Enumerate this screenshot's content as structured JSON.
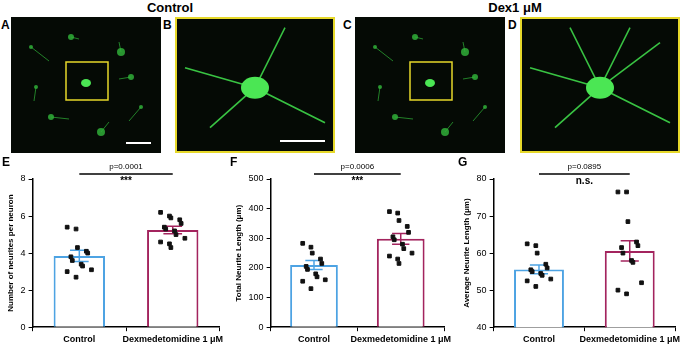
{
  "images": {
    "titles": [
      "Control",
      "Dex1 μM"
    ],
    "panels": [
      "A",
      "B",
      "C",
      "D"
    ]
  },
  "chart_data": [
    {
      "panel": "E",
      "type": "bar",
      "y_label": "Number of neurites per neuron",
      "categories": [
        "Control",
        "Dexmedetomidine 1 μM"
      ],
      "values": [
        3.85,
        5.25
      ],
      "errors": [
        0.3,
        0.2
      ],
      "colors": [
        "#4da3e3",
        "#a3245e"
      ],
      "points": [
        [
          5.4,
          5.3,
          4.3,
          4.1,
          4.0,
          3.8,
          3.6,
          3.4,
          3.3,
          3.1,
          3.0,
          2.7
        ],
        [
          6.2,
          6.0,
          5.9,
          5.8,
          5.6,
          5.4,
          5.3,
          5.2,
          5.0,
          4.8,
          4.6,
          4.5,
          4.3
        ]
      ],
      "marker": "square",
      "annotation": {
        "text": "p=0.0001",
        "significance": "***"
      },
      "ylim": [
        0,
        8
      ],
      "yticks": [
        0,
        2,
        4,
        6,
        8
      ],
      "grid": false
    },
    {
      "panel": "F",
      "type": "bar",
      "y_label": "Total Neurite Length (μm)",
      "categories": [
        "Control",
        "Dexmedetomidine 1 μM"
      ],
      "values": [
        210,
        298
      ],
      "errors": [
        15,
        18
      ],
      "colors": [
        "#4da3e3",
        "#a3245e"
      ],
      "points": [
        [
          283,
          270,
          250,
          230,
          215,
          205,
          195,
          180,
          170,
          160,
          155,
          130
        ],
        [
          390,
          385,
          360,
          340,
          320,
          305,
          295,
          280,
          265,
          250,
          240,
          230,
          215
        ]
      ],
      "marker": "square",
      "annotation": {
        "text": "p=0.0006",
        "significance": "***"
      },
      "ylim": [
        0,
        500
      ],
      "yticks": [
        0,
        100,
        200,
        300,
        400,
        500
      ],
      "grid": false
    },
    {
      "panel": "G",
      "type": "bar",
      "y_label": "Average Neurite Length (μm)",
      "categories": [
        "Control",
        "Dexmedetomidine 1 μM"
      ],
      "values": [
        55.6,
        60.6
      ],
      "errors": [
        1.2,
        2.7
      ],
      "colors": [
        "#4da3e3",
        "#a3245e"
      ],
      "points": [
        [
          62.5,
          62,
          60,
          57,
          56,
          55.5,
          55,
          54.5,
          54,
          53,
          52.5,
          51
        ],
        [
          76.5,
          76.5,
          68.5,
          63,
          62,
          61.5,
          60,
          58,
          57.5,
          52,
          50,
          49
        ]
      ],
      "marker": "square",
      "annotation": {
        "text": "p=0.0895",
        "significance": "n.s."
      },
      "ylim": [
        40,
        80
      ],
      "yticks": [
        40,
        50,
        60,
        70,
        80
      ],
      "grid": false
    }
  ]
}
